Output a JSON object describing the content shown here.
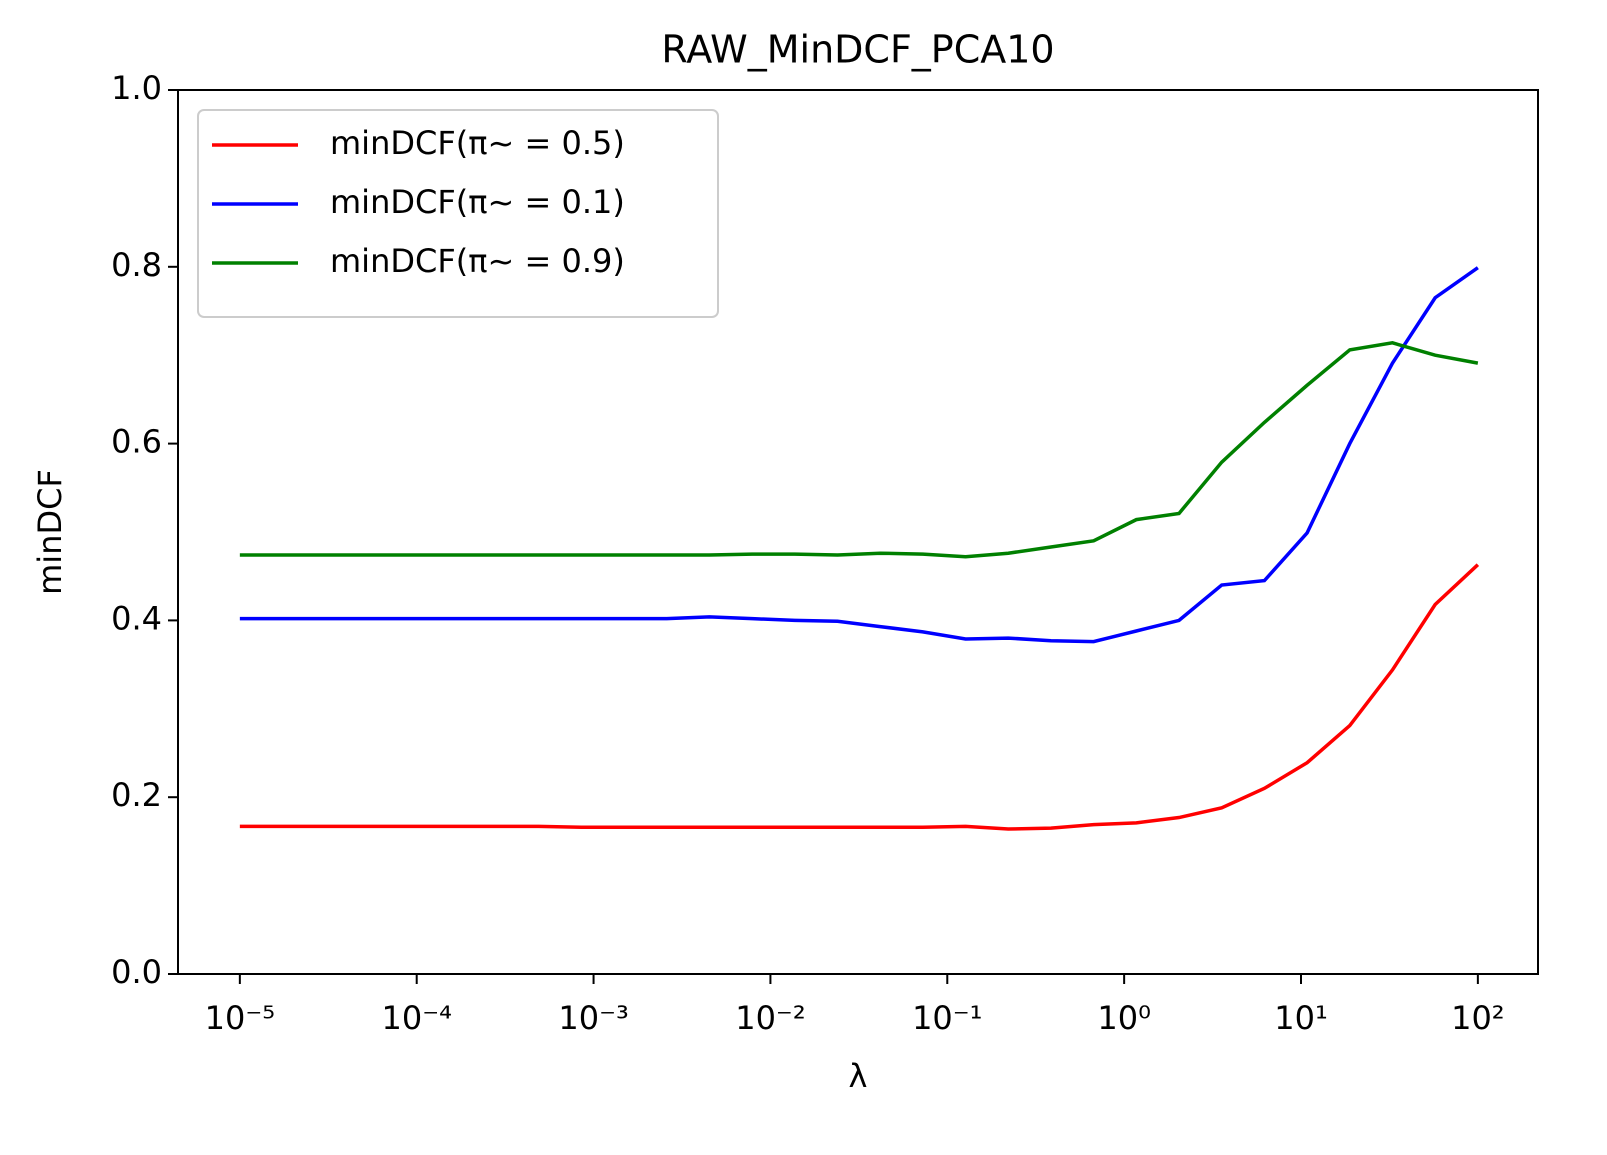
{
  "chart_data": {
    "type": "line",
    "title": "RAW_MinDCF_PCA10",
    "xlabel": "λ",
    "ylabel": "minDCF",
    "xscale": "log",
    "legend": "upper left",
    "x": [
      1e-05,
      1.743e-05,
      3.039e-05,
      5.298e-05,
      9.237e-05,
      0.000161,
      0.0002807,
      0.0004894,
      0.0008532,
      0.001487,
      0.002593,
      0.00452,
      0.00788,
      0.01374,
      0.02395,
      0.04175,
      0.07279,
      0.1269,
      0.2212,
      0.3857,
      0.6723,
      1.172,
      2.043,
      3.562,
      6.21,
      10.83,
      18.87,
      32.9,
      57.36,
      100
    ],
    "series": [
      {
        "name": "minDCF(π~ = 0.5)",
        "color": "#ff0000",
        "values": [
          0.167,
          0.167,
          0.167,
          0.167,
          0.167,
          0.167,
          0.167,
          0.167,
          0.166,
          0.166,
          0.166,
          0.166,
          0.166,
          0.166,
          0.166,
          0.166,
          0.166,
          0.167,
          0.164,
          0.165,
          0.169,
          0.171,
          0.177,
          0.188,
          0.21,
          0.239,
          0.281,
          0.344,
          0.418,
          0.463
        ]
      },
      {
        "name": "minDCF(π~ = 0.1)",
        "color": "#0000ff",
        "values": [
          0.402,
          0.402,
          0.402,
          0.402,
          0.402,
          0.402,
          0.402,
          0.402,
          0.402,
          0.402,
          0.402,
          0.404,
          0.402,
          0.4,
          0.399,
          0.393,
          0.387,
          0.379,
          0.38,
          0.377,
          0.376,
          0.388,
          0.4,
          0.44,
          0.445,
          0.499,
          0.6,
          0.691,
          0.765,
          0.799
        ]
      },
      {
        "name": "minDCF(π~ = 0.9)",
        "color": "#008000",
        "values": [
          0.474,
          0.474,
          0.474,
          0.474,
          0.474,
          0.474,
          0.474,
          0.474,
          0.474,
          0.474,
          0.474,
          0.474,
          0.475,
          0.475,
          0.474,
          0.476,
          0.475,
          0.472,
          0.476,
          0.483,
          0.49,
          0.514,
          0.521,
          0.579,
          0.624,
          0.666,
          0.706,
          0.714,
          0.7,
          0.691
        ]
      }
    ],
    "xlim": [
      4.47e-06,
      218.8
    ],
    "xticks": [
      {
        "value": 1e-05,
        "label": "10⁻⁵"
      },
      {
        "value": 0.0001,
        "label": "10⁻⁴"
      },
      {
        "value": 0.001,
        "label": "10⁻³"
      },
      {
        "value": 0.01,
        "label": "10⁻²"
      },
      {
        "value": 0.1,
        "label": "10⁻¹"
      },
      {
        "value": 1,
        "label": "10⁰"
      },
      {
        "value": 10,
        "label": "10¹"
      },
      {
        "value": 100,
        "label": "10²"
      }
    ],
    "ylim": [
      0,
      1
    ],
    "yticks": [
      {
        "value": 0,
        "label": "0.0"
      },
      0.2,
      0.4,
      0.6,
      0.8,
      {
        "value": 1,
        "label": "1.0"
      }
    ]
  }
}
